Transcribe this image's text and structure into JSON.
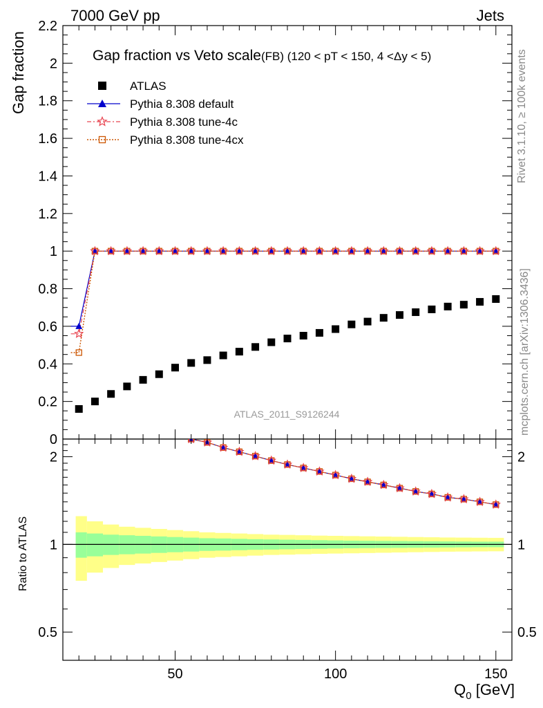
{
  "header": {
    "left": "7000 GeV pp",
    "right": "Jets"
  },
  "side_texts": {
    "rivet": "Rivet 3.1.10, ≥ 100k events",
    "mcplots": "mcplots.cern.ch [arXiv:1306.3436]"
  },
  "watermark": "ATLAS_2011_S9126244",
  "chart_data": [
    {
      "type": "scatter",
      "title": "Gap fraction vs Veto scale",
      "subtitle": "(FB) (120 < pT < 150, 4 <Δy < 5)",
      "ylabel": "Gap fraction",
      "xlim": [
        15,
        155
      ],
      "ylim": [
        0,
        2.2
      ],
      "yticks": [
        "0",
        "0.2",
        "0.4",
        "0.6",
        "0.8",
        "1",
        "1.2",
        "1.4",
        "1.6",
        "1.8",
        "2",
        "2.2"
      ],
      "x": [
        20,
        25,
        30,
        35,
        40,
        45,
        50,
        55,
        60,
        65,
        70,
        75,
        80,
        85,
        90,
        95,
        100,
        105,
        110,
        115,
        120,
        125,
        130,
        135,
        140,
        145,
        150
      ],
      "series": [
        {
          "name": "ATLAS",
          "color": "#000000",
          "marker": "square",
          "values": [
            0.16,
            0.2,
            0.24,
            0.28,
            0.315,
            0.345,
            0.38,
            0.405,
            0.42,
            0.445,
            0.465,
            0.49,
            0.515,
            0.535,
            0.55,
            0.565,
            0.585,
            0.61,
            0.625,
            0.645,
            0.66,
            0.675,
            0.69,
            0.705,
            0.715,
            0.73,
            0.745
          ]
        },
        {
          "name": "Pythia 8.308 default",
          "color": "#0000cc",
          "marker": "triangle",
          "line": "solid",
          "values": [
            0.6,
            1,
            1,
            1,
            1,
            1,
            1,
            1,
            1,
            1,
            1,
            1,
            1,
            1,
            1,
            1,
            1,
            1,
            1,
            1,
            1,
            1,
            1,
            1,
            1,
            1,
            1
          ]
        },
        {
          "name": "Pythia 8.308 tune-4c",
          "color": "#e8434f",
          "marker": "star",
          "line": "dashdot",
          "values": [
            0.56,
            1,
            1,
            1,
            1,
            1,
            1,
            1,
            1,
            1,
            1,
            1,
            1,
            1,
            1,
            1,
            1,
            1,
            1,
            1,
            1,
            1,
            1,
            1,
            1,
            1,
            1
          ]
        },
        {
          "name": "Pythia 8.308 tune-4cx",
          "color": "#cc5500",
          "marker": "open-square",
          "line": "dotted",
          "values": [
            0.46,
            1,
            1,
            1,
            1,
            1,
            1,
            1,
            1,
            1,
            1,
            1,
            1,
            1,
            1,
            1,
            1,
            1,
            1,
            1,
            1,
            1,
            1,
            1,
            1,
            1,
            1
          ]
        }
      ]
    },
    {
      "type": "line",
      "ylabel": "Ratio to ATLAS",
      "xlabel": "Q",
      "xlabel_sub": "0",
      "xlabel_unit": " [GeV]",
      "xlim": [
        15,
        155
      ],
      "ylim": [
        0.4,
        2.3
      ],
      "log_y": true,
      "xticks": [
        "50",
        "100",
        "150"
      ],
      "yticks": [
        "0.5",
        "1",
        "2"
      ],
      "x": [
        55,
        60,
        65,
        70,
        75,
        80,
        85,
        90,
        95,
        100,
        105,
        110,
        115,
        120,
        125,
        130,
        135,
        140,
        145,
        150
      ],
      "ratio": [
        2.3,
        2.24,
        2.15,
        2.08,
        2.01,
        1.94,
        1.88,
        1.83,
        1.78,
        1.73,
        1.68,
        1.64,
        1.6,
        1.56,
        1.52,
        1.49,
        1.45,
        1.43,
        1.4,
        1.37
      ],
      "band_x_edges": [
        17.5,
        22.5,
        27.5,
        32.5,
        37.5,
        42.5,
        47.5,
        52.5,
        57.5,
        62.5,
        67.5,
        72.5,
        77.5,
        82.5,
        87.5,
        92.5,
        97.5,
        102.5,
        107.5,
        112.5,
        117.5,
        122.5,
        127.5,
        132.5,
        137.5,
        142.5,
        147.5,
        152.5
      ],
      "band_stat": [
        0.1,
        0.09,
        0.08,
        0.075,
        0.07,
        0.065,
        0.06,
        0.055,
        0.05,
        0.048,
        0.045,
        0.042,
        0.04,
        0.038,
        0.036,
        0.034,
        0.032,
        0.03,
        0.029,
        0.028,
        0.027,
        0.026,
        0.025,
        0.024,
        0.023,
        0.022,
        0.022
      ],
      "band_total": [
        0.25,
        0.2,
        0.17,
        0.15,
        0.14,
        0.13,
        0.12,
        0.11,
        0.1,
        0.095,
        0.09,
        0.085,
        0.08,
        0.078,
        0.075,
        0.072,
        0.07,
        0.068,
        0.066,
        0.064,
        0.062,
        0.06,
        0.058,
        0.056,
        0.055,
        0.054,
        0.053
      ],
      "colors": {
        "stat": "#99ff99",
        "total": "#ffff88"
      }
    }
  ]
}
